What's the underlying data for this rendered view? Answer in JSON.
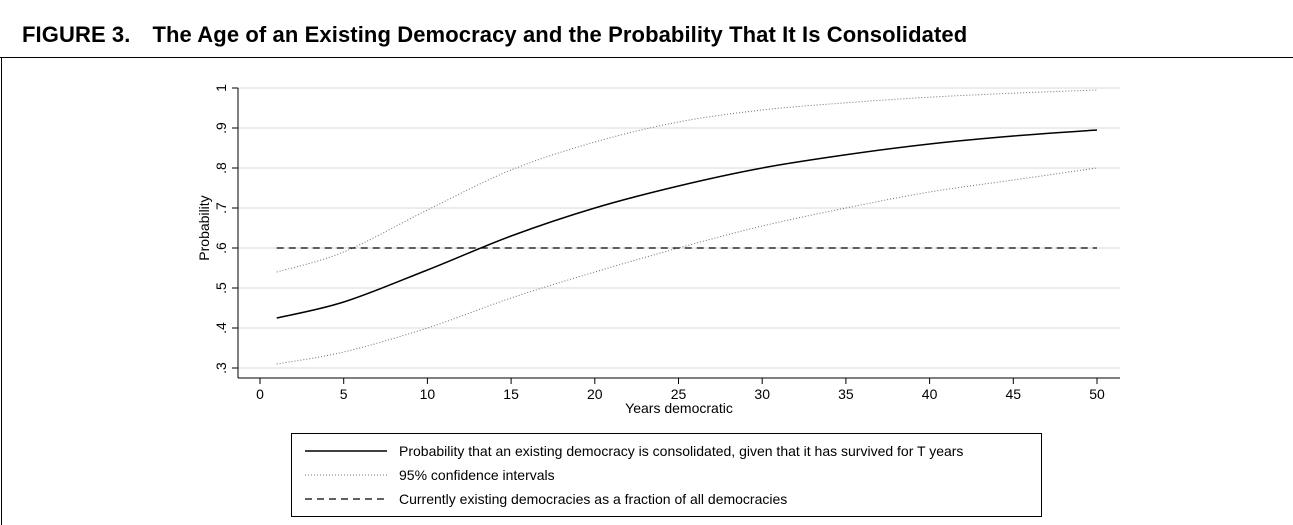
{
  "figure": {
    "label": "FIGURE 3.",
    "title": "The Age of an Existing Democracy and the Probability That It Is Consolidated"
  },
  "chart_data": {
    "type": "line",
    "xlabel": "Years democratic",
    "ylabel": "Probability",
    "xlim": [
      0,
      50
    ],
    "ylim": [
      0.3,
      1.0
    ],
    "xticks": [
      0,
      5,
      10,
      15,
      20,
      25,
      30,
      35,
      40,
      45,
      50
    ],
    "yticks": [
      0.3,
      0.4,
      0.5,
      0.6,
      0.7,
      0.8,
      0.9,
      1.0
    ],
    "xtick_labels": [
      "0",
      "5",
      "10",
      "15",
      "20",
      "25",
      "30",
      "35",
      "40",
      "45",
      "50"
    ],
    "ytick_labels": [
      ".3",
      ".4",
      ".5",
      ".6",
      ".7",
      ".8",
      ".9",
      "1"
    ],
    "grid": "horizontal",
    "legend_position": "bottom",
    "x": [
      1,
      5,
      10,
      15,
      20,
      25,
      30,
      35,
      40,
      45,
      50
    ],
    "series": [
      {
        "name": "Probability that an existing democracy is  consolidated, given that it has survived for T years",
        "style": "solid",
        "values": [
          0.425,
          0.465,
          0.545,
          0.63,
          0.7,
          0.755,
          0.8,
          0.833,
          0.86,
          0.88,
          0.895
        ]
      },
      {
        "name": "95%  confidence intervals",
        "style": "dotted",
        "values": [
          0.54,
          0.59,
          0.695,
          0.795,
          0.865,
          0.915,
          0.945,
          0.963,
          0.977,
          0.987,
          0.995
        ]
      },
      {
        "name": "",
        "style": "dotted",
        "values": [
          0.31,
          0.34,
          0.4,
          0.475,
          0.54,
          0.6,
          0.655,
          0.7,
          0.74,
          0.77,
          0.8
        ]
      },
      {
        "name": "Currently existing democracies as a fraction of all democracies",
        "style": "dashed",
        "values": [
          0.6,
          0.6,
          0.6,
          0.6,
          0.6,
          0.6,
          0.6,
          0.6,
          0.6,
          0.6,
          0.6
        ]
      }
    ],
    "colors": {
      "line": "#000000",
      "ci": "#6e6e6e",
      "grid": "#d9d9d9"
    }
  }
}
